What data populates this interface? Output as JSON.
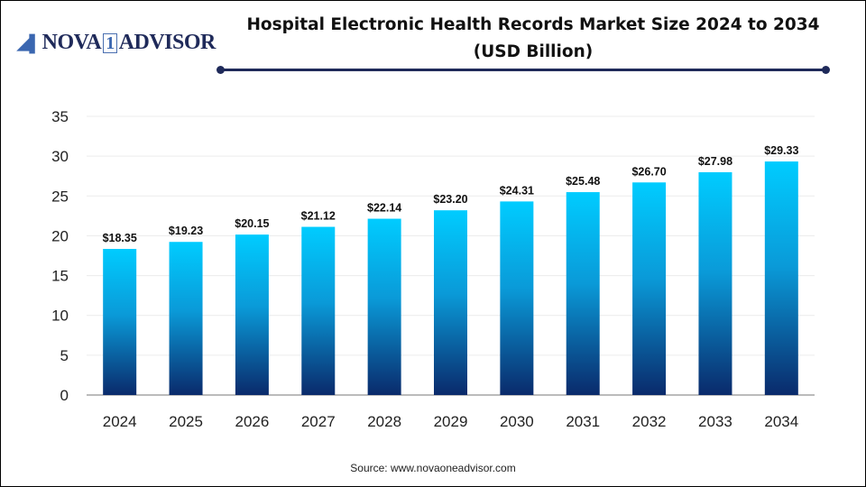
{
  "logo": {
    "text_main": "NOVA",
    "text_num": "1",
    "text_end": "ADVISOR"
  },
  "source": "Source: www.novaoneadvisor.com",
  "colors": {
    "bar_top": "#00ccff",
    "bar_bottom": "#0a2a6b",
    "rule": "#1f2a5a"
  },
  "chart_data": {
    "type": "bar",
    "title": "Hospital Electronic Health Records Market Size 2024 to 2034 (USD Billion)",
    "categories": [
      "2024",
      "2025",
      "2026",
      "2027",
      "2028",
      "2029",
      "2030",
      "2031",
      "2032",
      "2033",
      "2034"
    ],
    "values": [
      18.35,
      19.23,
      20.15,
      21.12,
      22.14,
      23.2,
      24.31,
      25.48,
      26.7,
      27.98,
      29.33
    ],
    "data_labels": [
      "$18.35",
      "$19.23",
      "$20.15",
      "$21.12",
      "$22.14",
      "$23.20",
      "$24.31",
      "$25.48",
      "$26.70",
      "$27.98",
      "$29.33"
    ],
    "yticks": [
      0,
      5,
      10,
      15,
      20,
      25,
      30,
      35
    ],
    "ylim": [
      0,
      35
    ],
    "grid": true,
    "xlabel": "",
    "ylabel": ""
  }
}
